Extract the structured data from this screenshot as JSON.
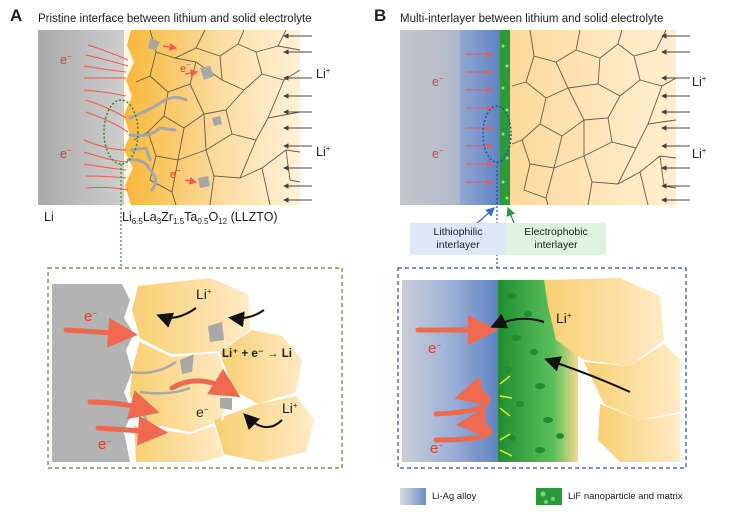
{
  "panel_a": {
    "letter": "A",
    "title": "Pristine interface between lithium and solid electrolyte",
    "li_label": "Li",
    "electrolyte_label": {
      "parts": [
        "Li",
        "6.5",
        "La",
        "3",
        "Zr",
        "1.5",
        "Ta",
        "0.5",
        "O",
        "12",
        " (LLZTO)"
      ]
    },
    "electron": "e",
    "lithium_ion": "Li",
    "reaction": "Li⁺ + e⁻ → Li"
  },
  "panel_b": {
    "letter": "B",
    "title": "Multi-interlayer between lithium and solid electrolyte",
    "lithiophilic_label": "Lithiophilic\ninterlayer",
    "electrophobic_label": "Electrophobic\ninterlayer",
    "electron": "e",
    "lithium_ion": "Li"
  },
  "legend": {
    "items": [
      {
        "label": "Li-Ag alloy",
        "color": "#6f8fc8"
      },
      {
        "label": "LiF nanoparticle and matrix",
        "color": "#2a9a3a"
      }
    ]
  },
  "colors": {
    "lithium": "#b9b9b9",
    "electrolyte": "#f7c35e",
    "electrolyte_light": "#fde6b4",
    "electron_arrow": "#f05a4a",
    "box_a": "#5a8a2a",
    "box_b": "#3050a0"
  }
}
